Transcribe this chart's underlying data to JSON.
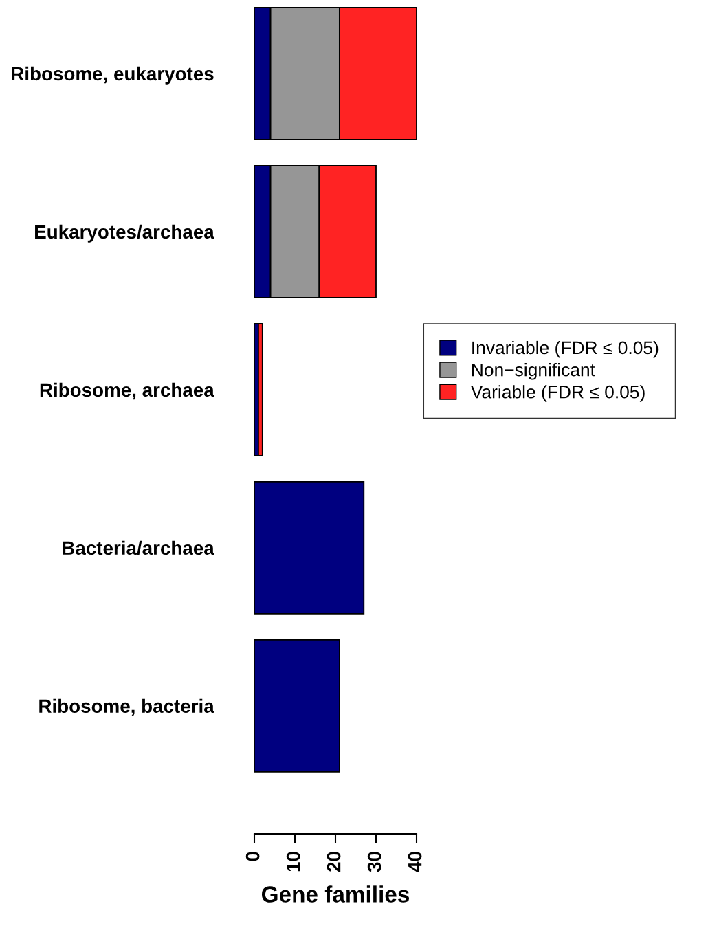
{
  "chart_data": {
    "type": "bar",
    "orientation": "horizontal",
    "stacked": true,
    "categories": [
      "Ribosome, eukaryotes",
      "Eukaryotes/archaea",
      "Ribosome, archaea",
      "Bacteria/archaea",
      "Ribosome, bacteria"
    ],
    "series": [
      {
        "name": "Invariable (FDR ≤ 0.05)",
        "color": "#000080",
        "values": [
          4,
          4,
          1,
          27,
          21
        ]
      },
      {
        "name": "Non−significant",
        "color": "#969696",
        "values": [
          17,
          12,
          0,
          0,
          0
        ]
      },
      {
        "name": "Variable (FDR ≤ 0.05)",
        "color": "#ff2323",
        "values": [
          19,
          14,
          1,
          0,
          0
        ]
      }
    ],
    "xlim": [
      0,
      40
    ],
    "xticks": [
      0,
      10,
      20,
      30,
      40
    ],
    "xlabel": "Gene families",
    "legend": "right",
    "grid": false
  }
}
